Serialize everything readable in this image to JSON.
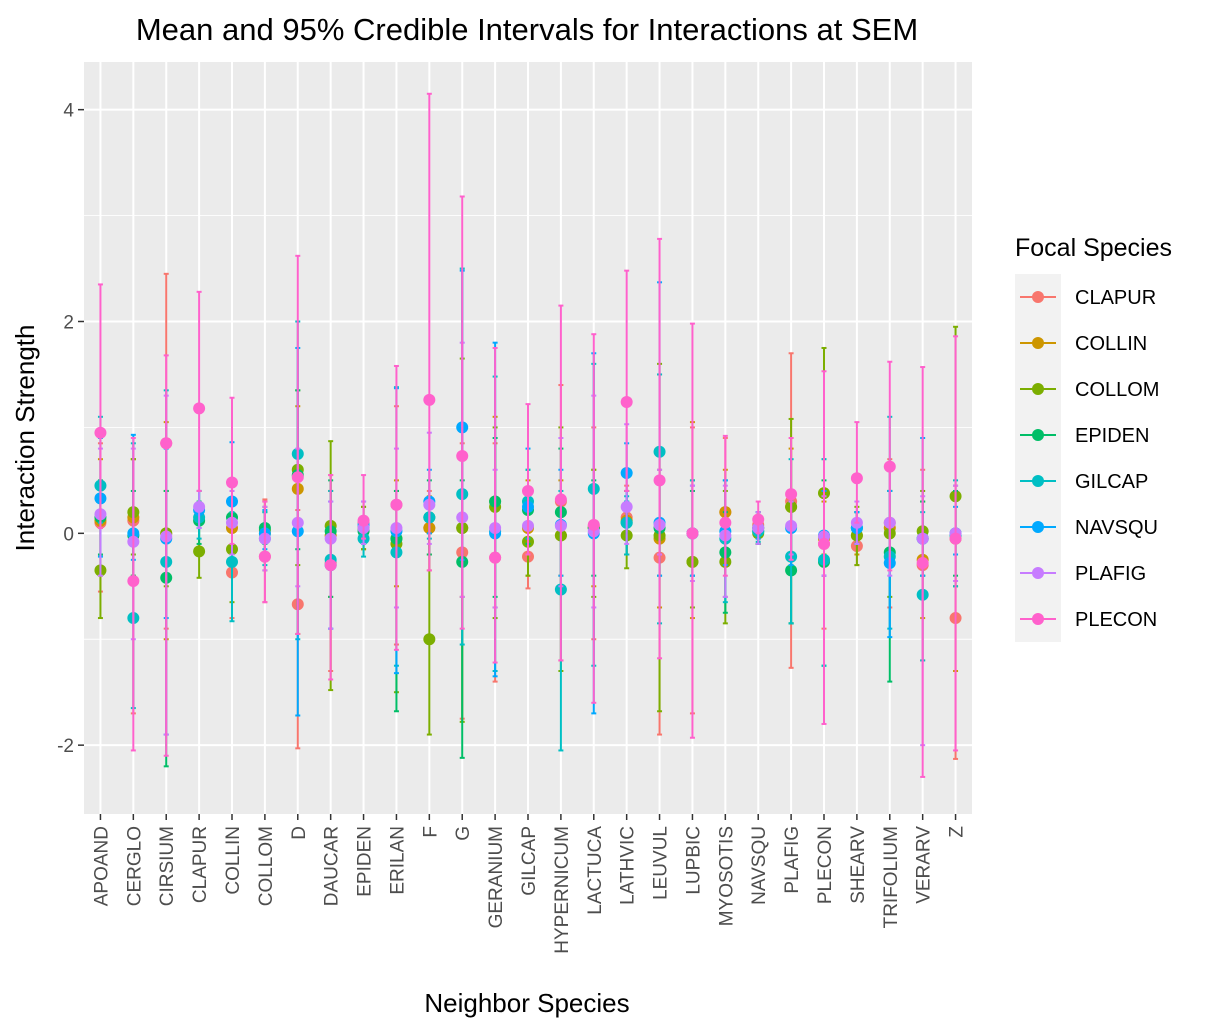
{
  "chart_data": {
    "type": "scatter",
    "title": "Mean and 95% Credible Intervals for Interactions at SEM",
    "xlabel": "Neighbor Species",
    "ylabel": "Interaction Strength",
    "ylim": [
      -2.65,
      4.45
    ],
    "yticks": [
      -2,
      0,
      2,
      4
    ],
    "grid": true,
    "legend_placement": "right",
    "legend_title": "Focal Species",
    "categories": [
      "APOAND",
      "CERGLO",
      "CIRSIUM",
      "CLAPUR",
      "COLLIN",
      "COLLOM",
      "D",
      "DAUCAR",
      "EPIDEN",
      "ERILAN",
      "F",
      "G",
      "GERANIUM",
      "GILCAP",
      "HYPERNICUM",
      "LACTUCA",
      "LATHVIC",
      "LEUVUL",
      "LUPBIC",
      "MYOSOTIS",
      "NAVSQU",
      "PLAFIG",
      "PLECON",
      "SHEARV",
      "TRIFOLIUM",
      "VERARV",
      "Z"
    ],
    "series": [
      {
        "name": "CLAPUR",
        "color": "#F8766D",
        "mean": [
          0.1,
          0.12,
          0.85,
          null,
          -0.37,
          -0.22,
          -0.67,
          -0.28,
          0.1,
          0.27,
          0.05,
          -0.18,
          -0.23,
          -0.22,
          0.3,
          0.07,
          0.15,
          -0.23,
          0.0,
          0.2,
          0.08,
          0.3,
          -0.1,
          -0.12,
          0.1,
          -0.3,
          -0.8
        ],
        "lower": [
          -0.55,
          -1.7,
          -0.9,
          null,
          -0.8,
          -0.65,
          -2.03,
          -1.3,
          -0.15,
          -1.05,
          -0.35,
          -1.75,
          -1.4,
          -0.52,
          -1.2,
          -1.0,
          -0.2,
          -1.9,
          -1.7,
          -0.6,
          -0.05,
          -1.27,
          -0.9,
          -0.3,
          -0.7,
          -1.2,
          -2.13
        ],
        "upper": [
          0.85,
          0.7,
          2.45,
          null,
          0.05,
          0.32,
          0.22,
          0.55,
          0.3,
          1.2,
          0.4,
          0.85,
          0.85,
          0.1,
          1.4,
          1.0,
          0.45,
          1.5,
          1.0,
          0.9,
          0.2,
          1.7,
          0.7,
          0.05,
          0.7,
          0.6,
          0.35
        ]
      },
      {
        "name": "COLLIN",
        "color": "#CD9600",
        "mean": [
          0.12,
          0.15,
          0.0,
          null,
          0.05,
          0.0,
          0.42,
          -0.02,
          0.05,
          -0.05,
          0.05,
          0.05,
          0.3,
          0.05,
          -0.02,
          0.05,
          0.12,
          -0.05,
          -0.27,
          0.2,
          0.05,
          0.25,
          -0.05,
          -0.02,
          0.05,
          -0.25,
          -0.05
        ],
        "lower": [
          -0.4,
          -0.4,
          -1.0,
          null,
          -0.3,
          -0.35,
          -0.95,
          -0.6,
          -0.15,
          -0.5,
          -0.2,
          -0.6,
          -0.7,
          -0.4,
          -0.4,
          -0.5,
          -0.2,
          -0.7,
          -0.8,
          -0.3,
          -0.1,
          -0.25,
          -0.4,
          -0.2,
          -0.3,
          -0.8,
          -1.3
        ],
        "upper": [
          0.7,
          0.7,
          1.05,
          null,
          0.4,
          0.3,
          1.2,
          0.4,
          0.25,
          0.5,
          0.35,
          0.75,
          1.1,
          0.5,
          0.5,
          0.6,
          0.4,
          0.6,
          1.05,
          0.6,
          0.2,
          0.8,
          0.3,
          0.2,
          0.4,
          0.3,
          0.45
        ]
      },
      {
        "name": "COLLOM",
        "color": "#7CAE00",
        "mean": [
          -0.35,
          0.2,
          0.0,
          -0.17,
          -0.15,
          0.03,
          0.6,
          0.07,
          0.05,
          -0.1,
          -1.0,
          0.05,
          0.25,
          -0.08,
          -0.02,
          0.05,
          -0.02,
          -0.02,
          -0.27,
          -0.27,
          0.0,
          0.25,
          0.38,
          -0.02,
          0.0,
          0.02,
          0.35
        ],
        "lower": [
          -0.8,
          -0.2,
          -0.5,
          -0.42,
          -0.65,
          -0.2,
          -0.3,
          -1.48,
          -0.15,
          -1.5,
          -1.9,
          -1.78,
          -0.8,
          -0.4,
          -1.3,
          -0.6,
          -0.33,
          -1.68,
          -0.7,
          -0.85,
          -0.1,
          -0.85,
          -0.2,
          -0.3,
          -0.6,
          -0.4,
          -0.5
        ],
        "upper": [
          0.05,
          0.7,
          0.4,
          0.4,
          0.3,
          0.25,
          1.35,
          0.87,
          0.25,
          0.4,
          0.0,
          1.65,
          1.0,
          0.4,
          1.0,
          0.6,
          0.3,
          1.6,
          0.5,
          0.4,
          0.1,
          1.08,
          1.75,
          0.25,
          0.4,
          0.4,
          1.95
        ]
      },
      {
        "name": "EPIDEN",
        "color": "#00BE67",
        "mean": [
          0.15,
          -0.02,
          -0.42,
          0.12,
          0.15,
          0.05,
          0.55,
          0.02,
          0.02,
          -0.05,
          0.15,
          -0.27,
          0.3,
          0.22,
          0.2,
          0.05,
          0.1,
          0.05,
          0.0,
          -0.18,
          0.02,
          -0.35,
          -0.27,
          0.05,
          -0.18,
          -0.05,
          0.0
        ],
        "lower": [
          -0.2,
          -0.4,
          -2.2,
          -0.1,
          -0.2,
          -0.1,
          -0.15,
          -0.6,
          -0.1,
          -1.68,
          -0.2,
          -2.12,
          -0.6,
          -0.1,
          -0.5,
          -0.4,
          -0.2,
          -0.4,
          -0.4,
          -0.75,
          -0.1,
          -0.85,
          -1.25,
          -0.1,
          -1.4,
          -0.4,
          -0.4
        ],
        "upper": [
          0.5,
          0.4,
          0.4,
          0.3,
          0.45,
          0.2,
          1.35,
          0.5,
          0.15,
          0.4,
          0.5,
          0.5,
          0.9,
          0.6,
          0.8,
          0.5,
          0.4,
          0.5,
          0.4,
          0.2,
          0.15,
          0.1,
          0.5,
          0.2,
          0.4,
          0.3,
          0.4
        ]
      },
      {
        "name": "GILCAP",
        "color": "#00BFC4",
        "mean": [
          0.45,
          -0.8,
          -0.27,
          0.15,
          -0.27,
          -0.05,
          0.75,
          -0.25,
          -0.05,
          -0.18,
          0.15,
          0.37,
          0.02,
          0.3,
          -0.53,
          0.42,
          0.1,
          0.77,
          0.0,
          -0.05,
          0.02,
          -0.22,
          -0.25,
          0.05,
          -0.22,
          -0.58,
          -0.02
        ],
        "lower": [
          0.1,
          -1.65,
          -1.9,
          -0.05,
          -0.83,
          -0.3,
          -1.0,
          -0.9,
          -0.22,
          -1.25,
          -0.05,
          -1.05,
          -1.3,
          -0.05,
          -2.05,
          -1.25,
          -0.2,
          -0.85,
          -0.4,
          -0.65,
          -0.08,
          -0.85,
          -1.25,
          -0.1,
          -0.9,
          -1.2,
          -0.5
        ],
        "upper": [
          1.1,
          0.85,
          1.35,
          0.4,
          0.2,
          0.2,
          2.0,
          0.4,
          0.1,
          1.38,
          0.3,
          2.5,
          1.48,
          0.6,
          0.4,
          1.6,
          0.35,
          1.5,
          0.5,
          0.5,
          0.15,
          0.7,
          0.7,
          0.2,
          1.1,
          0.2,
          0.5
        ]
      },
      {
        "name": "NAVSQU",
        "color": "#00A9FF",
        "mean": [
          0.33,
          0.0,
          -0.05,
          0.22,
          0.3,
          0.0,
          0.02,
          -0.3,
          0.08,
          0.02,
          0.3,
          1.0,
          0.0,
          0.25,
          0.08,
          0.0,
          0.57,
          0.1,
          0.0,
          0.02,
          0.05,
          0.05,
          -0.02,
          0.05,
          -0.28,
          -0.05,
          0.0
        ],
        "lower": [
          -0.22,
          -0.25,
          -0.8,
          0.05,
          -0.2,
          -0.15,
          -1.72,
          -0.9,
          -0.1,
          -1.32,
          0.0,
          -0.25,
          -1.35,
          0.05,
          -0.4,
          -1.7,
          0.3,
          -0.4,
          -0.4,
          -0.3,
          -0.05,
          -0.3,
          -0.4,
          -0.1,
          -0.98,
          -0.4,
          -0.2
        ],
        "upper": [
          0.9,
          0.93,
          0.8,
          0.4,
          0.86,
          0.22,
          1.75,
          0.3,
          0.3,
          1.37,
          0.6,
          2.48,
          1.8,
          0.8,
          0.6,
          1.7,
          0.85,
          2.37,
          0.45,
          0.5,
          0.2,
          0.3,
          0.4,
          0.2,
          0.4,
          0.9,
          0.25
        ]
      },
      {
        "name": "PLAFIG",
        "color": "#C77CFF",
        "mean": [
          0.18,
          -0.08,
          -0.03,
          0.25,
          0.1,
          -0.05,
          0.1,
          -0.05,
          0.05,
          0.05,
          0.27,
          0.15,
          0.05,
          0.07,
          0.07,
          0.02,
          0.25,
          0.08,
          0.0,
          -0.02,
          0.05,
          0.07,
          -0.03,
          0.1,
          0.1,
          -0.05,
          0.0
        ],
        "lower": [
          -0.4,
          -1.0,
          -1.9,
          0.05,
          -0.2,
          -0.35,
          -0.5,
          -0.9,
          -0.1,
          -0.7,
          -0.1,
          -0.6,
          -0.7,
          -0.2,
          -0.5,
          -0.7,
          -0.1,
          -0.2,
          -0.45,
          -0.6,
          -0.1,
          -0.2,
          -0.4,
          -0.1,
          -0.4,
          -2.0,
          -0.45
        ],
        "upper": [
          0.8,
          0.8,
          1.3,
          0.4,
          0.4,
          0.25,
          0.8,
          0.3,
          0.3,
          0.8,
          0.95,
          1.8,
          0.6,
          0.4,
          0.9,
          1.3,
          1.03,
          0.6,
          0.45,
          0.45,
          0.2,
          0.3,
          0.35,
          0.3,
          0.6,
          0.35,
          0.45
        ]
      },
      {
        "name": "PLECON",
        "color": "#FF61CC",
        "mean": [
          0.95,
          -0.45,
          0.85,
          1.18,
          0.48,
          -0.22,
          0.53,
          -0.3,
          0.12,
          0.27,
          1.26,
          0.73,
          -0.23,
          0.4,
          0.32,
          0.08,
          1.24,
          0.5,
          0.0,
          0.1,
          0.13,
          0.37,
          -0.1,
          0.52,
          0.63,
          -0.28,
          -0.05
        ],
        "lower": [
          0.05,
          -2.05,
          -2.1,
          0.4,
          -0.1,
          -0.65,
          -0.95,
          -1.38,
          -0.05,
          -1.1,
          -0.35,
          -0.9,
          -1.22,
          -0.2,
          -1.2,
          -1.6,
          0.4,
          -1.18,
          -1.93,
          -0.4,
          0.0,
          -0.25,
          -1.8,
          0.1,
          -0.35,
          -2.3,
          -2.05
        ],
        "upper": [
          2.35,
          0.9,
          1.68,
          2.28,
          1.28,
          0.3,
          2.62,
          0.55,
          0.55,
          1.58,
          4.15,
          3.18,
          1.75,
          1.22,
          2.15,
          1.88,
          2.48,
          2.78,
          1.98,
          0.92,
          0.3,
          0.9,
          1.53,
          1.05,
          1.62,
          1.57,
          1.86
        ]
      }
    ]
  }
}
